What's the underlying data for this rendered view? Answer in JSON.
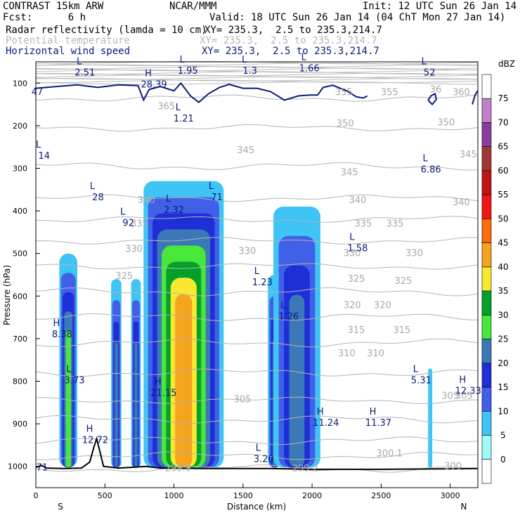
{
  "header": {
    "model": "CONTRAST 15km ARW",
    "org": "NCAR/MMM",
    "init": "Init: 12 UTC Sun 26 Jan 14",
    "fcst": "Fcst:      6 h",
    "valid": "Valid: 18 UTC Sun 26 Jan 14 (04 ChT Mon 27 Jan 14)",
    "fields": [
      {
        "name": "Radar reflectivity (lamda = 10 cm)",
        "xy": "XY= 235.3,  2.5 to 235.3,214.7",
        "color": "#000000"
      },
      {
        "name": "Potential temperature",
        "xy": "XY= 235.3,  2.5 to 235.3,214.7",
        "color": "#b8b8b8"
      },
      {
        "name": "Horizontal wind speed",
        "xy": "XY= 235.3,  2.5 to 235.3,214.7",
        "color": "#0a1a7a"
      }
    ]
  },
  "chart_data": {
    "type": "heatmap",
    "xlabel": "Distance (km)",
    "ylabel": "Pressure (hPa)",
    "xlim": [
      0,
      3200
    ],
    "ylim": [
      1050,
      50
    ],
    "x_ticks": [
      0,
      500,
      1000,
      1500,
      2000,
      2500,
      3000
    ],
    "y_ticks": [
      100,
      200,
      300,
      400,
      500,
      600,
      700,
      800,
      900,
      1000
    ],
    "end_labels": {
      "left": "S",
      "right": "N"
    },
    "colorbar": {
      "unit": "dBZ",
      "levels": [
        0,
        5,
        10,
        15,
        20,
        25,
        30,
        35,
        40,
        45,
        50,
        55,
        60,
        65,
        70,
        75
      ],
      "colors": [
        "#ffffff",
        "#9ffcf8",
        "#3fc5f5",
        "#4060e8",
        "#1f2fd8",
        "#3a78b8",
        "#48e83a",
        "#05a02a",
        "#f8e830",
        "#f5a41f",
        "#ff6a0a",
        "#f01616",
        "#c01515",
        "#a03838",
        "#8c3ca0",
        "#c080c8",
        "#ffffff"
      ]
    },
    "reflectivity_columns": [
      {
        "x": [
          170,
          300
        ],
        "top": 500,
        "max_dbz": 25
      },
      {
        "x": [
          545,
          620
        ],
        "top": 560,
        "max_dbz": 20
      },
      {
        "x": [
          690,
          760
        ],
        "top": 560,
        "max_dbz": 20
      },
      {
        "x": [
          780,
          1360
        ],
        "top": 330,
        "max_dbz": 40
      },
      {
        "x": [
          1680,
          1780
        ],
        "top": 550,
        "max_dbz": 20
      },
      {
        "x": [
          1720,
          2060
        ],
        "top": 390,
        "max_dbz": 20
      },
      {
        "x": [
          2840,
          2870
        ],
        "top": 770,
        "max_dbz": 5
      }
    ],
    "theta_labels": [
      {
        "x": 2240,
        "p": 195,
        "value": "350"
      },
      {
        "x": 2970,
        "p": 193,
        "value": "350"
      },
      {
        "x": 1520,
        "p": 258,
        "value": "345"
      },
      {
        "x": 2270,
        "p": 310,
        "value": "345"
      },
      {
        "x": 3130,
        "p": 268,
        "value": "345"
      },
      {
        "x": 800,
        "p": 375,
        "value": "340"
      },
      {
        "x": 2330,
        "p": 375,
        "value": "340"
      },
      {
        "x": 3080,
        "p": 380,
        "value": "340"
      },
      {
        "x": 750,
        "p": 430,
        "value": "335"
      },
      {
        "x": 2370,
        "p": 430,
        "value": "335"
      },
      {
        "x": 2600,
        "p": 430,
        "value": "335"
      },
      {
        "x": 710,
        "p": 490,
        "value": "330"
      },
      {
        "x": 1530,
        "p": 495,
        "value": "330"
      },
      {
        "x": 2290,
        "p": 500,
        "value": "330"
      },
      {
        "x": 2740,
        "p": 500,
        "value": "330"
      },
      {
        "x": 640,
        "p": 553,
        "value": "325"
      },
      {
        "x": 2320,
        "p": 560,
        "value": "325"
      },
      {
        "x": 2660,
        "p": 565,
        "value": "325"
      },
      {
        "x": 2290,
        "p": 622,
        "value": "320"
      },
      {
        "x": 2510,
        "p": 622,
        "value": "320"
      },
      {
        "x": 2320,
        "p": 680,
        "value": "315"
      },
      {
        "x": 2650,
        "p": 680,
        "value": "315"
      },
      {
        "x": 2250,
        "p": 735,
        "value": "310"
      },
      {
        "x": 2460,
        "p": 735,
        "value": "310"
      },
      {
        "x": 1495,
        "p": 843,
        "value": "305"
      },
      {
        "x": 3000,
        "p": 835,
        "value": "305"
      },
      {
        "x": 3100,
        "p": 835,
        "value": "305"
      },
      {
        "x": 2560,
        "p": 970,
        "value": "300.1"
      },
      {
        "x": 3020,
        "p": 1000,
        "value": "300"
      },
      {
        "x": 1030,
        "p": 1005,
        "value": "299.9"
      },
      {
        "x": 1950,
        "p": 1005,
        "value": "299.2"
      },
      {
        "x": 945,
        "p": 155,
        "value": "365"
      },
      {
        "x": 2230,
        "p": 122,
        "value": "355"
      },
      {
        "x": 2560,
        "p": 122,
        "value": "355"
      },
      {
        "x": 2895,
        "p": 115,
        "value": "36"
      },
      {
        "x": 3080,
        "p": 122,
        "value": "360"
      }
    ],
    "wind_labels": [
      {
        "x": 355,
        "p": 72,
        "mark": "L",
        "value": "2.51"
      },
      {
        "x": 10,
        "p": 118,
        "mark": "",
        "value": "47"
      },
      {
        "x": 855,
        "p": 100,
        "mark": "H",
        "value": "28.39"
      },
      {
        "x": 1100,
        "p": 68,
        "mark": "L",
        "value": "1.95"
      },
      {
        "x": 1550,
        "p": 68,
        "mark": "L",
        "value": "1.3"
      },
      {
        "x": 1980,
        "p": 62,
        "mark": "L",
        "value": "1.66"
      },
      {
        "x": 2850,
        "p": 72,
        "mark": "L",
        "value": "52"
      },
      {
        "x": 1070,
        "p": 180,
        "mark": "L",
        "value": "1.21"
      },
      {
        "x": 60,
        "p": 268,
        "mark": "L",
        "value": "14"
      },
      {
        "x": 2860,
        "p": 300,
        "mark": "L",
        "value": "6.86"
      },
      {
        "x": 450,
        "p": 365,
        "mark": "L",
        "value": "28"
      },
      {
        "x": 1000,
        "p": 395,
        "mark": "L",
        "value": "2.32"
      },
      {
        "x": 1310,
        "p": 365,
        "mark": "L",
        "value": "71"
      },
      {
        "x": 670,
        "p": 425,
        "mark": "L",
        "value": "92"
      },
      {
        "x": 2330,
        "p": 485,
        "mark": "L",
        "value": "1.58"
      },
      {
        "x": 1640,
        "p": 565,
        "mark": "L",
        "value": "1.23"
      },
      {
        "x": 1830,
        "p": 645,
        "mark": "L",
        "value": "1.26"
      },
      {
        "x": 190,
        "p": 687,
        "mark": "H",
        "value": "8.38"
      },
      {
        "x": 280,
        "p": 795,
        "mark": "L",
        "value": "3.73"
      },
      {
        "x": 2790,
        "p": 795,
        "mark": "L",
        "value": "5.31"
      },
      {
        "x": 3130,
        "p": 820,
        "mark": "H",
        "value": "12.33"
      },
      {
        "x": 925,
        "p": 825,
        "mark": "H",
        "value": "21.15"
      },
      {
        "x": 2100,
        "p": 895,
        "mark": "H",
        "value": "11.24"
      },
      {
        "x": 2480,
        "p": 895,
        "mark": "H",
        "value": "11.37"
      },
      {
        "x": 430,
        "p": 935,
        "mark": "H",
        "value": "12.72"
      },
      {
        "x": 1650,
        "p": 980,
        "mark": "L",
        "value": "3.20"
      },
      {
        "x": 45,
        "p": 1000,
        "mark": "",
        "value": "71"
      }
    ],
    "terrain": [
      [
        0,
        1002
      ],
      [
        40,
        998
      ],
      [
        80,
        1004
      ],
      [
        200,
        1005
      ],
      [
        330,
        1004
      ],
      [
        390,
        990
      ],
      [
        420,
        955
      ],
      [
        440,
        935
      ],
      [
        460,
        960
      ],
      [
        490,
        1000
      ],
      [
        600,
        1004
      ],
      [
        800,
        1000
      ],
      [
        900,
        1004
      ],
      [
        1200,
        1005
      ],
      [
        1700,
        1005
      ],
      [
        2000,
        1007
      ],
      [
        2500,
        1007
      ],
      [
        3200,
        1005
      ]
    ]
  }
}
